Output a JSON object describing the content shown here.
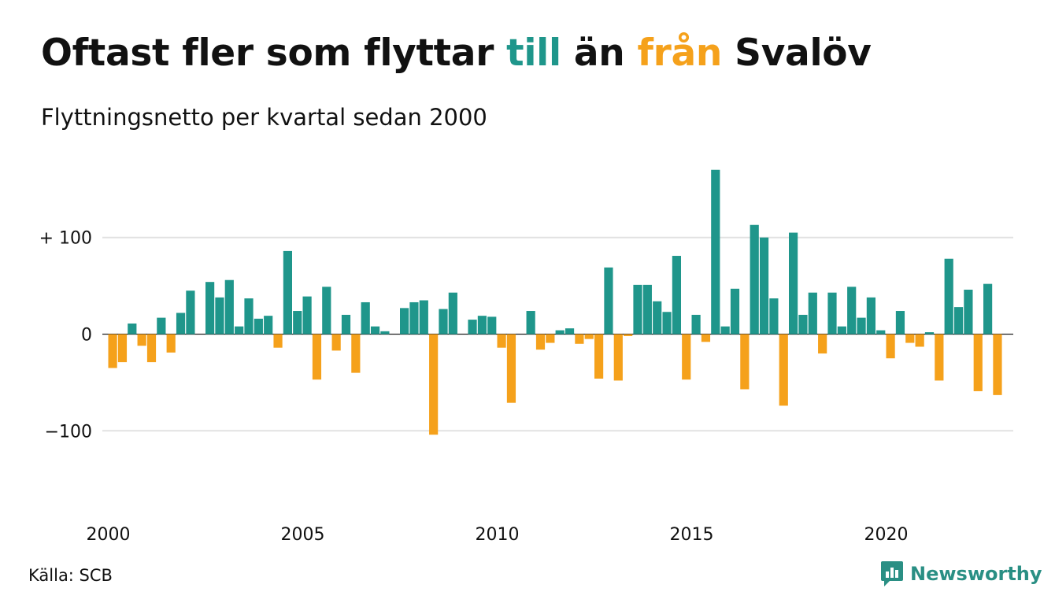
{
  "title": {
    "part1": "Oftast fler som flyttar ",
    "highlight_to": "till",
    "part2": " än ",
    "highlight_from": "från",
    "part3": " Svalöv"
  },
  "subtitle": "Flyttningsnetto per kvartal sedan 2000",
  "source": "Källa: SCB",
  "brand": "Newsworthy",
  "colors": {
    "positive": "#1f968b",
    "negative": "#f5a11b",
    "grid": "#e2e2e2",
    "brand": "#2a8f84"
  },
  "chart_data": {
    "type": "bar",
    "xlabel": "",
    "ylabel": "",
    "ylim": [
      -150,
      185
    ],
    "grid": true,
    "y_ticks": [
      {
        "value": 100,
        "label": "+ 100"
      },
      {
        "value": 0,
        "label": "0"
      },
      {
        "value": -100,
        "label": "−100"
      }
    ],
    "x_ticks": [
      {
        "year": 2000,
        "label": "2000"
      },
      {
        "year": 2005,
        "label": "2005"
      },
      {
        "year": 2010,
        "label": "2010"
      },
      {
        "year": 2015,
        "label": "2015"
      },
      {
        "year": 2020,
        "label": "2020"
      }
    ],
    "start": "2000 Q1",
    "values": [
      -35,
      -29,
      11,
      -12,
      -29,
      17,
      -19,
      22,
      45,
      0,
      54,
      38,
      56,
      8,
      37,
      16,
      19,
      -14,
      86,
      24,
      39,
      -47,
      49,
      -17,
      20,
      -40,
      33,
      8,
      3,
      0,
      27,
      33,
      35,
      -104,
      26,
      43,
      0,
      15,
      19,
      18,
      -14,
      -71,
      0,
      24,
      -16,
      -9,
      4,
      6,
      -10,
      -5,
      -46,
      69,
      -48,
      -2,
      51,
      51,
      34,
      23,
      81,
      -47,
      20,
      -8,
      170,
      8,
      47,
      -57,
      113,
      100,
      37,
      -74,
      105,
      20,
      43,
      -20,
      43,
      8,
      49,
      17,
      38,
      4,
      -25,
      24,
      -9,
      -13,
      2,
      -48,
      78,
      28,
      46,
      -59,
      52,
      -63
    ]
  }
}
